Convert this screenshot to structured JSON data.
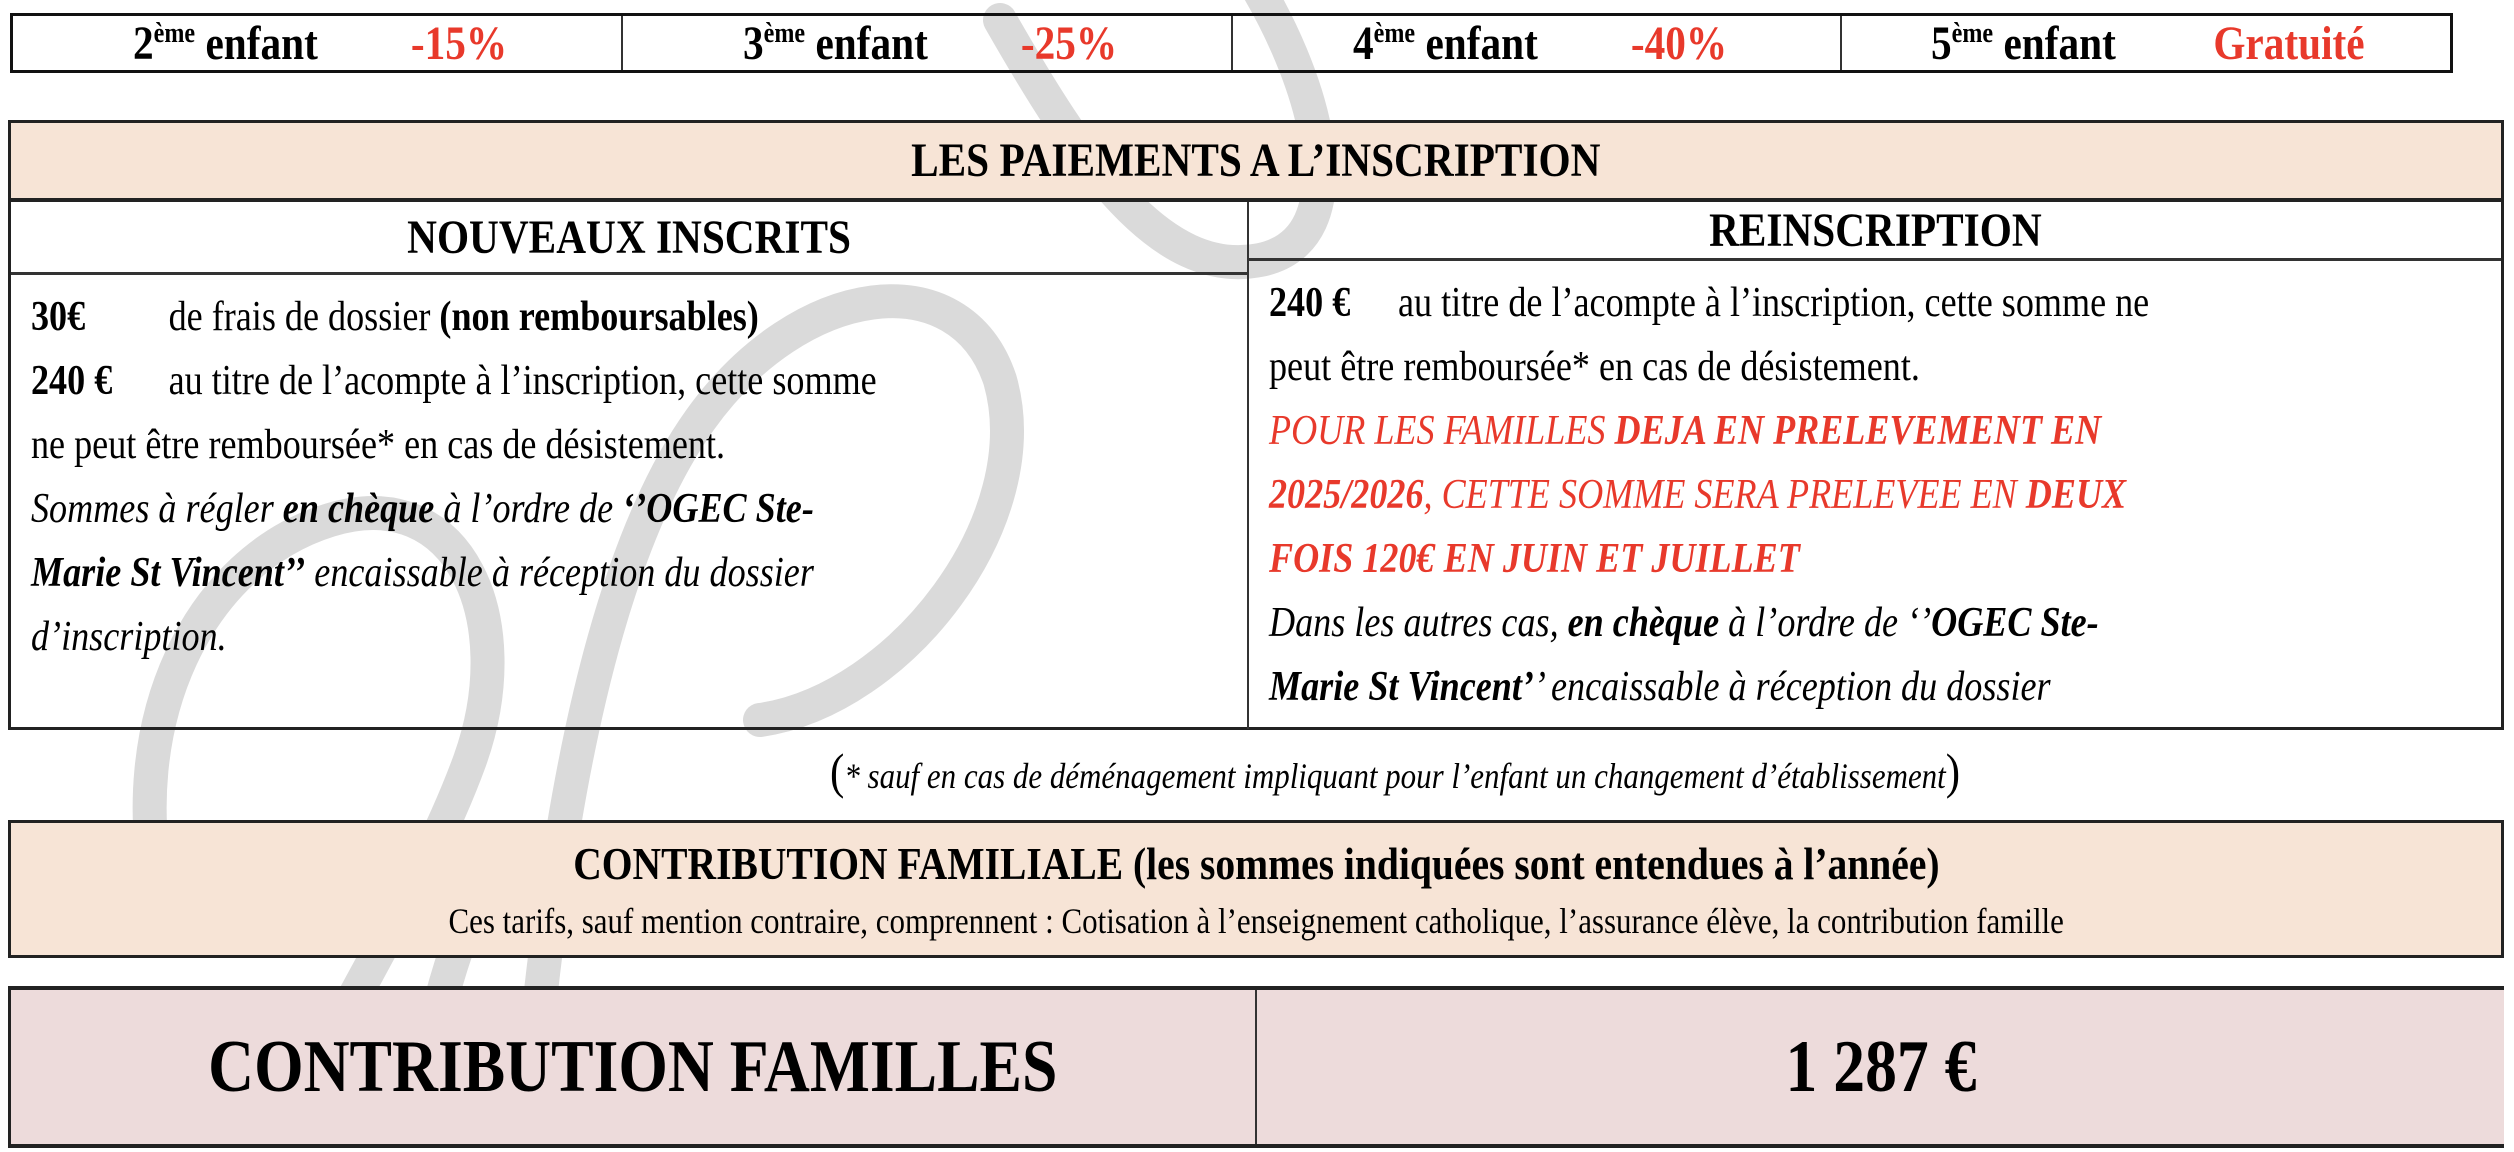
{
  "discounts": [
    {
      "ordinal": "2",
      "suffix": "ème",
      "label": "enfant",
      "value": "-15%"
    },
    {
      "ordinal": "3",
      "suffix": "ème",
      "label": "enfant",
      "value": "-25%"
    },
    {
      "ordinal": "4",
      "suffix": "ème",
      "label": "enfant",
      "value": "-40%"
    },
    {
      "ordinal": "5",
      "suffix": "ème",
      "label": "enfant",
      "value": "Gratuité"
    }
  ],
  "paiements": {
    "title": "LES PAIEMENTS A L’INSCRIPTION",
    "nouveaux": {
      "heading": "NOUVEAUX INSCRITS",
      "fee_amount": "30€",
      "fee_text": "de frais de dossier ",
      "fee_bold": "(non remboursables)",
      "deposit_amount": "240 €",
      "deposit_text_1": "au titre de l’acompte à l’inscription, cette somme",
      "deposit_text_2": "ne peut être remboursée* en cas de désistement.",
      "cheque_1a": "Sommes à régler ",
      "cheque_1b": "en chèque",
      "cheque_1c": " à l’ordre de ",
      "cheque_1d": "‘’OGEC Ste-",
      "cheque_2a": "Marie St Vincent’’",
      "cheque_2b": " encaissable à réception du dossier",
      "cheque_3": "d’inscription."
    },
    "reinscription": {
      "heading": "REINSCRIPTION",
      "deposit_amount": "240 €",
      "deposit_text_1": "au titre de l’acompte à l’inscription, cette somme ne",
      "deposit_text_2": "peut être remboursée* en cas de désistement.",
      "red_1a": "POUR LES FAMILLES ",
      "red_1b": "DEJA EN PRELEVEMENT EN",
      "red_2a": "2025/2026",
      "red_2b": ", CETTE SOMME SERA PRELEVEE EN ",
      "red_2c": "DEUX",
      "red_3": "FOIS 120€ EN JUIN ET JUILLET",
      "other_1a": "Dans les autres cas, ",
      "other_1b": "en chèque",
      "other_1c": " à l’ordre de ‘’",
      "other_1d": "OGEC Ste-",
      "other_2a": "Marie St Vincent’",
      "other_2b": "’ encaissable à réception du dossier"
    }
  },
  "footnote": {
    "open": "(",
    "text": "* sauf en cas de déménagement impliquant pour l’enfant un changement d’établissement",
    "close": ")"
  },
  "contribution_familiale": {
    "title": "CONTRIBUTION FAMILIALE (les sommes indiquées sont entendues à l’année)",
    "subtitle": "Ces tarifs, sauf mention contraire, comprennent : Cotisation à l’enseignement catholique, l’assurance élève, la contribution famille"
  },
  "contribution_familles": {
    "label": "CONTRIBUTION FAMILLES",
    "amount": "1 287 €"
  },
  "colors": {
    "accent_red": "#e8392b",
    "header_bg": "#f7e4d6",
    "total_bg": "#eddbdb",
    "watermark": "#d9d9d9"
  }
}
